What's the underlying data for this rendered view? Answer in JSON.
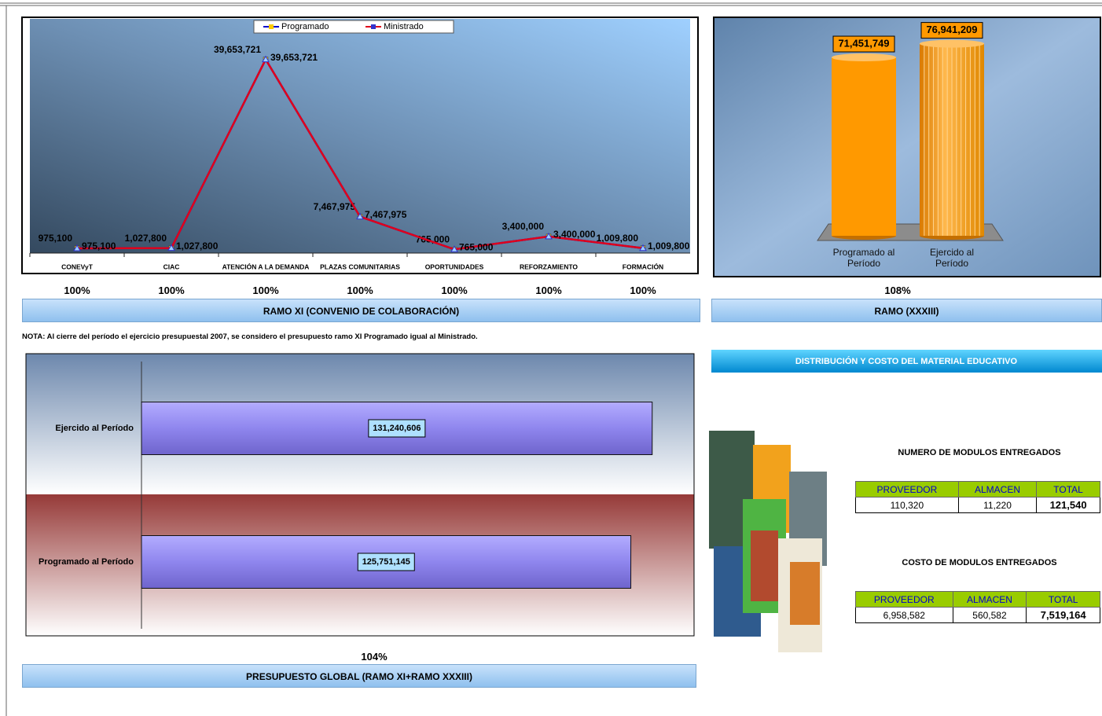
{
  "chart_data": [
    {
      "type": "line",
      "categories": [
        "CONEVyT",
        "CIAC",
        "ATENCIÓN A LA DEMANDA",
        "PLAZAS COMUNITARIAS",
        "OPORTUNIDADES",
        "REFORZAMIENTO",
        "FORMACIÓN"
      ],
      "series": [
        {
          "name": "Programado",
          "color": "#0000cc",
          "marker_color": "#ffcc00",
          "values": [
            975100,
            1027800,
            39653721,
            7467975,
            765000,
            3400000,
            1009800
          ],
          "value_labels": [
            "975,100",
            "1,027,800",
            "39,653,721",
            "7,467,975",
            "765,000",
            "3,400,000",
            "1,009,800"
          ]
        },
        {
          "name": "Ministrado",
          "color": "#e0001b",
          "marker_color": "#3333cc",
          "values": [
            975100,
            1027800,
            39653721,
            7467975,
            765000,
            3400000,
            1009800
          ],
          "value_labels": [
            "975,100",
            "1,027,800",
            "39,653,721",
            "7,467,975",
            "765,000",
            "3,400,000",
            "1,009,800"
          ]
        }
      ],
      "ylim": [
        0,
        47000000
      ],
      "legend": "top",
      "percent_labels": [
        "100%",
        "100%",
        "100%",
        "100%",
        "100%",
        "100%",
        "100%"
      ],
      "caption": "RAMO XI (CONVENIO DE COLABORACIÓN)"
    },
    {
      "type": "bar",
      "categories": [
        "Programado al Período",
        "Ejercido al Período"
      ],
      "values": [
        71451749,
        76941209
      ],
      "value_labels": [
        "71,451,749",
        "76,941,209"
      ],
      "color": "#ff9900",
      "ylim": [
        0,
        85000000
      ],
      "percent_label": "108%",
      "caption": "RAMO (XXXIII)"
    },
    {
      "type": "hbar",
      "categories": [
        "Ejercido al Período",
        "Programado al Período"
      ],
      "values": [
        131240606,
        125751145
      ],
      "value_labels": [
        "131,240,606",
        "125,751,145"
      ],
      "color": "#8f86ee",
      "xlim": [
        0,
        142000000
      ],
      "percent_label": "104%",
      "caption": "PRESUPUESTO GLOBAL (RAMO XI+RAMO XXXIII)"
    }
  ],
  "note": "NOTA: Al cierre del período el ejercicio presupuestal 2007, se considero el presupuesto ramo XI Programado igual al Ministrado.",
  "section_title": "DISTRIBUCIÓN Y COSTO DEL MATERIAL EDUCATIVO",
  "tables": [
    {
      "title": "NUMERO DE MODULOS ENTREGADOS",
      "header": [
        "PROVEEDOR",
        "ALMACEN",
        "TOTAL"
      ],
      "rows": [
        [
          "110,320",
          "11,220",
          "121,540"
        ]
      ]
    },
    {
      "title": "COSTO DE MODULOS ENTREGADOS",
      "header": [
        "PROVEEDOR",
        "ALMACEN",
        "TOTAL"
      ],
      "rows": [
        [
          "6,958,582",
          "560,582",
          "7,519,164"
        ]
      ]
    }
  ]
}
